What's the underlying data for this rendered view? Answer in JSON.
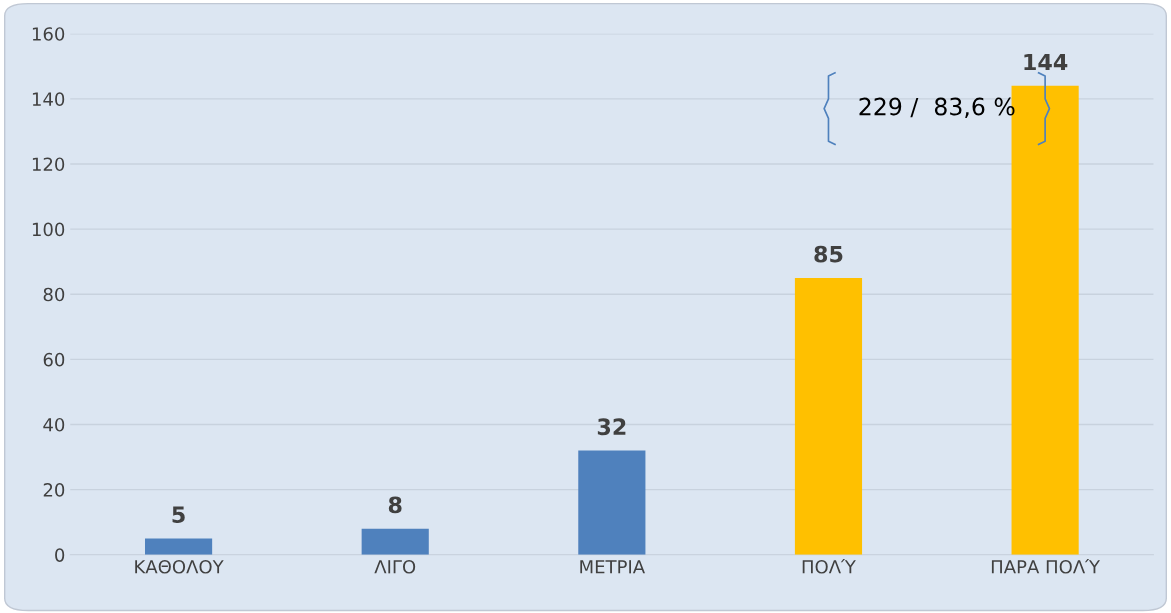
{
  "chart_data": {
    "type": "bar",
    "categories": [
      "ΚΑΘΟΛΟΥ",
      "ΛΙΓΟ",
      "ΜΕΤΡΙΑ",
      "ΠΟΛΎ",
      "ΠΑΡΑ ΠΟΛΎ"
    ],
    "values": [
      5,
      8,
      32,
      85,
      144
    ],
    "colors": [
      "#4f81bd",
      "#4f81bd",
      "#4f81bd",
      "#ffc000",
      "#ffc000"
    ],
    "ylim": [
      0,
      160
    ],
    "yticks": [
      0,
      20,
      40,
      60,
      80,
      100,
      120,
      140,
      160
    ],
    "grid": "y",
    "data_labels": true,
    "annotations": [
      "229 /  83,6 %"
    ]
  }
}
